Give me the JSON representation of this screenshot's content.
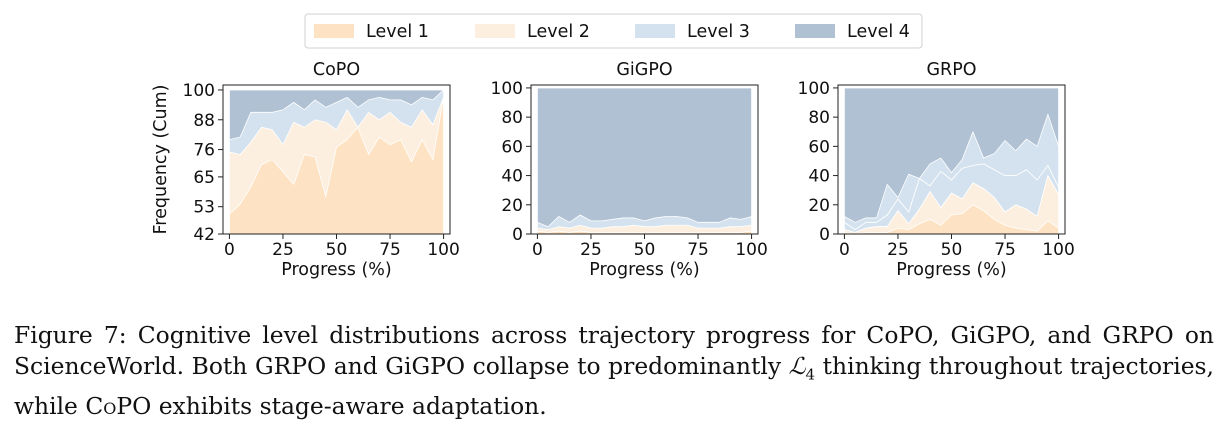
{
  "chart_data": {
    "type": "area",
    "stacked": true,
    "legend": {
      "placement": "top-center",
      "entries": [
        {
          "name": "Level 1",
          "color": "#fde3c3"
        },
        {
          "name": "Level 2",
          "color": "#fdefdf"
        },
        {
          "name": "Level 3",
          "color": "#d3e2ee"
        },
        {
          "name": "Level 4",
          "color": "#b0c1d3"
        }
      ]
    },
    "x": [
      0,
      5,
      10,
      15,
      20,
      25,
      30,
      35,
      40,
      45,
      50,
      55,
      60,
      65,
      70,
      75,
      80,
      85,
      90,
      95,
      100
    ],
    "xlabel": "Progress (%)",
    "xticks": [
      0,
      25,
      50,
      75,
      100
    ],
    "xlim": [
      -3,
      103
    ],
    "panels": [
      {
        "title": "CoPO",
        "ylabel": "Frequency (Cum)",
        "ylim": [
          42,
          102
        ],
        "yticks": [
          42,
          53,
          65,
          76,
          88,
          100
        ],
        "cumulative": {
          "level1": [
            50,
            54,
            61,
            70,
            72,
            67,
            62,
            74,
            73,
            57,
            77,
            80,
            85,
            74,
            81,
            78,
            80,
            71,
            80,
            72,
            97
          ],
          "level2": [
            75,
            74,
            79,
            85,
            84,
            78,
            87,
            85,
            88,
            87,
            84,
            92,
            85,
            91,
            88,
            91,
            87,
            85,
            92,
            86,
            97
          ],
          "level3": [
            80,
            81,
            91,
            91,
            91,
            92,
            95,
            92,
            96,
            93,
            95,
            97,
            93,
            96,
            97,
            96,
            96,
            94,
            97,
            96,
            100
          ],
          "level4": [
            100,
            100,
            100,
            100,
            100,
            100,
            100,
            100,
            100,
            100,
            100,
            100,
            100,
            100,
            100,
            100,
            100,
            100,
            100,
            100,
            100
          ]
        }
      },
      {
        "title": "GiGPO",
        "ylabel": "",
        "ylim": [
          0,
          102
        ],
        "yticks": [
          0,
          20,
          40,
          60,
          80,
          100
        ],
        "cumulative": {
          "level1": [
            2,
            1,
            2,
            1,
            2,
            1,
            1,
            1,
            1,
            1,
            1,
            1,
            1,
            1,
            1,
            1,
            1,
            1,
            1,
            1,
            2
          ],
          "level2": [
            4,
            3,
            5,
            4,
            6,
            4,
            4,
            5,
            5,
            6,
            5,
            5,
            6,
            6,
            6,
            4,
            4,
            4,
            5,
            5,
            6
          ],
          "level3": [
            8,
            5,
            12,
            8,
            13,
            9,
            9,
            10,
            11,
            11,
            9,
            11,
            12,
            12,
            11,
            8,
            8,
            8,
            11,
            10,
            12
          ],
          "level4": [
            100,
            100,
            100,
            100,
            100,
            100,
            100,
            100,
            100,
            100,
            100,
            100,
            100,
            100,
            100,
            100,
            100,
            100,
            100,
            100,
            100
          ]
        }
      },
      {
        "title": "GRPO",
        "ylabel": "",
        "ylim": [
          0,
          102
        ],
        "yticks": [
          0,
          20,
          40,
          60,
          80,
          100
        ],
        "cumulative": {
          "level1": [
            1,
            0,
            1,
            1,
            1,
            4,
            3,
            7,
            10,
            6,
            13,
            14,
            20,
            16,
            10,
            6,
            4,
            3,
            2,
            9,
            4
          ],
          "level2": [
            3,
            1,
            4,
            5,
            5,
            16,
            7,
            17,
            29,
            18,
            28,
            24,
            35,
            31,
            25,
            15,
            20,
            17,
            12,
            40,
            27
          ],
          "level3": [
            8,
            3,
            8,
            8,
            13,
            24,
            15,
            38,
            33,
            43,
            37,
            45,
            47,
            48,
            44,
            40,
            40,
            44,
            37,
            47,
            32
          ],
          "level4": [
            100,
            100,
            100,
            100,
            100,
            100,
            100,
            100,
            100,
            100,
            100,
            100,
            100,
            100,
            100,
            100,
            100,
            100,
            100,
            100,
            100
          ]
        },
        "overlay": {
          "level3_peaks": [
            12,
            8,
            11,
            11,
            34,
            25,
            41,
            20,
            48,
            52,
            42,
            51,
            70,
            52,
            55,
            64,
            57,
            65,
            60,
            82,
            60
          ]
        }
      }
    ]
  },
  "caption": {
    "label": "Figure 7:",
    "text_part1": " Cognitive level distributions across trajectory progress for CoPO, GiGPO, and GRPO on ScienceWorld. Both GRPO and GiGPO collapse to predominantly ",
    "math_symbol": "ℒ",
    "math_subscript": "4",
    "text_part2": " thinking throughout trajectories, while ",
    "method_small_caps": "CoPO",
    "text_part3": " exhibits stage-aware adaptation."
  }
}
